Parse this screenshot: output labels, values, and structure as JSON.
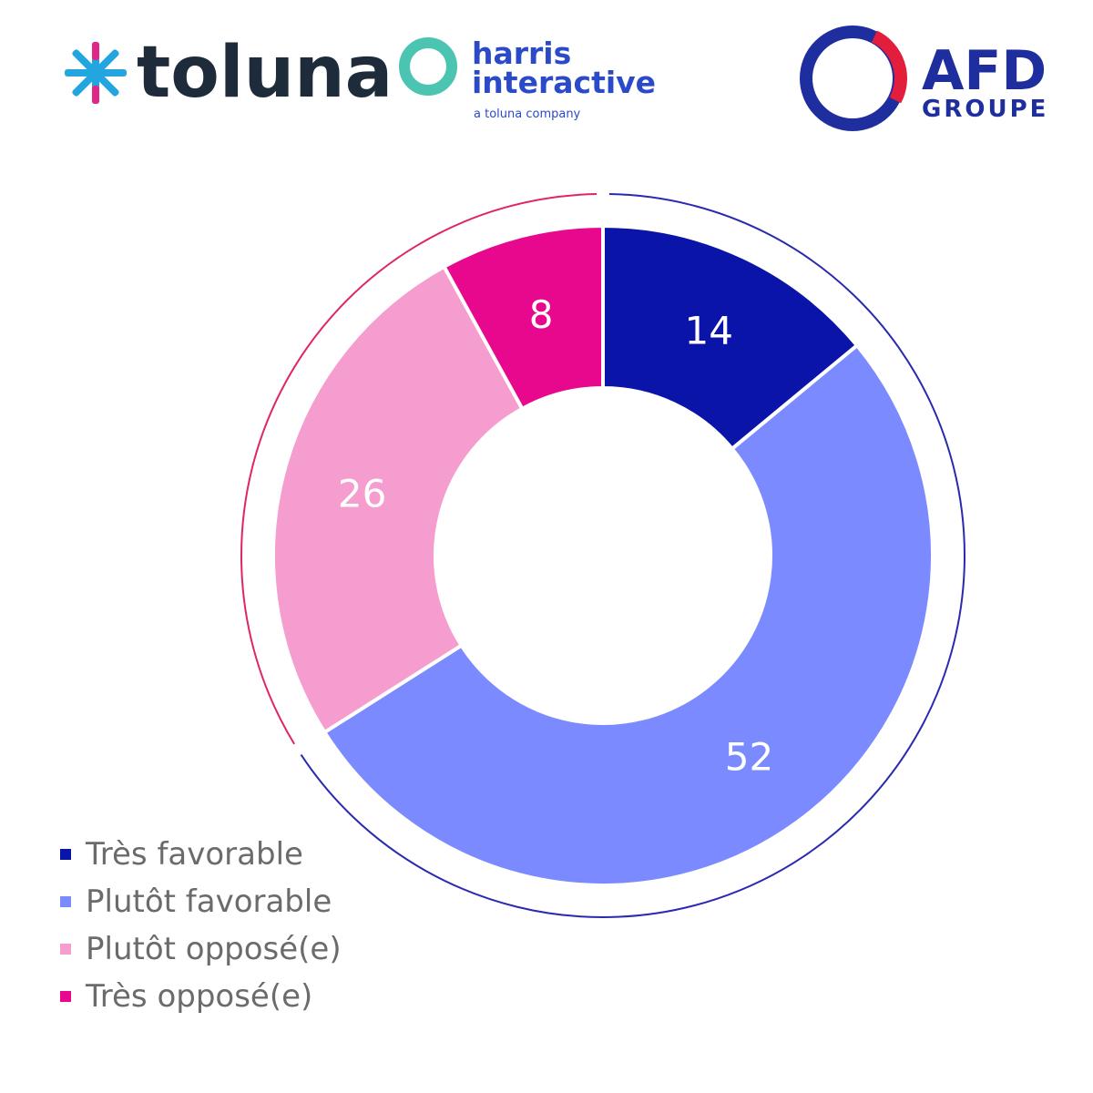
{
  "logos": {
    "toluna": {
      "wordmark": "toluna"
    },
    "harris": {
      "line1": "harris",
      "line2": "interactive",
      "tagline": "a toluna company"
    },
    "afd": {
      "line1": "AFD",
      "line2": "GROUPE"
    }
  },
  "chart_data": {
    "type": "pie",
    "variant": "donut",
    "title": "",
    "unit": "%",
    "categories": [
      "Très favorable",
      "Plutôt favorable",
      "Plutôt opposé(e)",
      "Très opposé(e)"
    ],
    "values": [
      14,
      52,
      26,
      8
    ],
    "colors": [
      "#0a14a8",
      "#7b8bff",
      "#f59dcf",
      "#e8088e"
    ],
    "label_color": "#ffffff",
    "legend": {
      "position": "bottom-left"
    },
    "outer_arcs": [
      {
        "group": "favorable",
        "color": "#2a2ab0"
      },
      {
        "group": "opposed",
        "color": "#e0246a"
      }
    ]
  },
  "colors": {
    "toluna_text": "#1d2b3a",
    "toluna_star_blue": "#23a6e0",
    "toluna_star_pink": "#e02687",
    "harris_blue": "#2b4ac7",
    "harris_ring": "#4cc4b2",
    "afd_blue": "#1f2e9e",
    "afd_red": "#e31d3c"
  }
}
